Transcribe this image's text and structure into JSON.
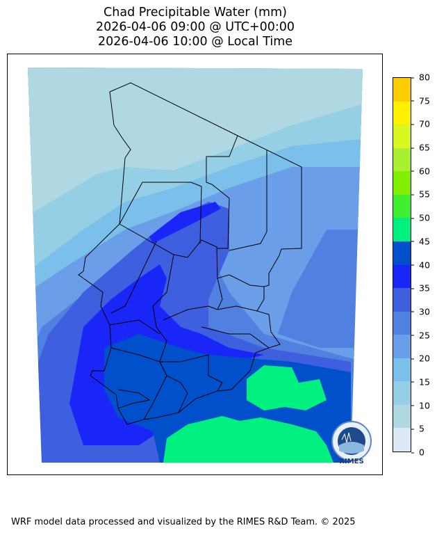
{
  "title": {
    "line1": "Chad Precipitable Water (mm)",
    "line2": "2026-04-06 09:00 @ UTC+00:00",
    "line3": "2026-04-06 10:00 @ Local Time"
  },
  "colorbar": {
    "ticks": [
      "0",
      "5",
      "10",
      "15",
      "20",
      "25",
      "30",
      "35",
      "40",
      "45",
      "50",
      "55",
      "60",
      "65",
      "70",
      "75",
      "80"
    ],
    "colors": [
      "#dbeaf5",
      "#b0d8e3",
      "#94cfe5",
      "#7ac0ea",
      "#6a9ee8",
      "#5080e0",
      "#3f60de",
      "#1a26f8",
      "#0050cc",
      "#00f080",
      "#40f030",
      "#80f000",
      "#a8f030",
      "#d8f820",
      "#fff000",
      "#ffcc00"
    ]
  },
  "logo": {
    "text": "RIMES",
    "arc_text": "Regional Integrated Multi-Hazard Early Warning System"
  },
  "footer": "WRF model data processed and visualized by the RIMES R&D Team. © 2025"
}
